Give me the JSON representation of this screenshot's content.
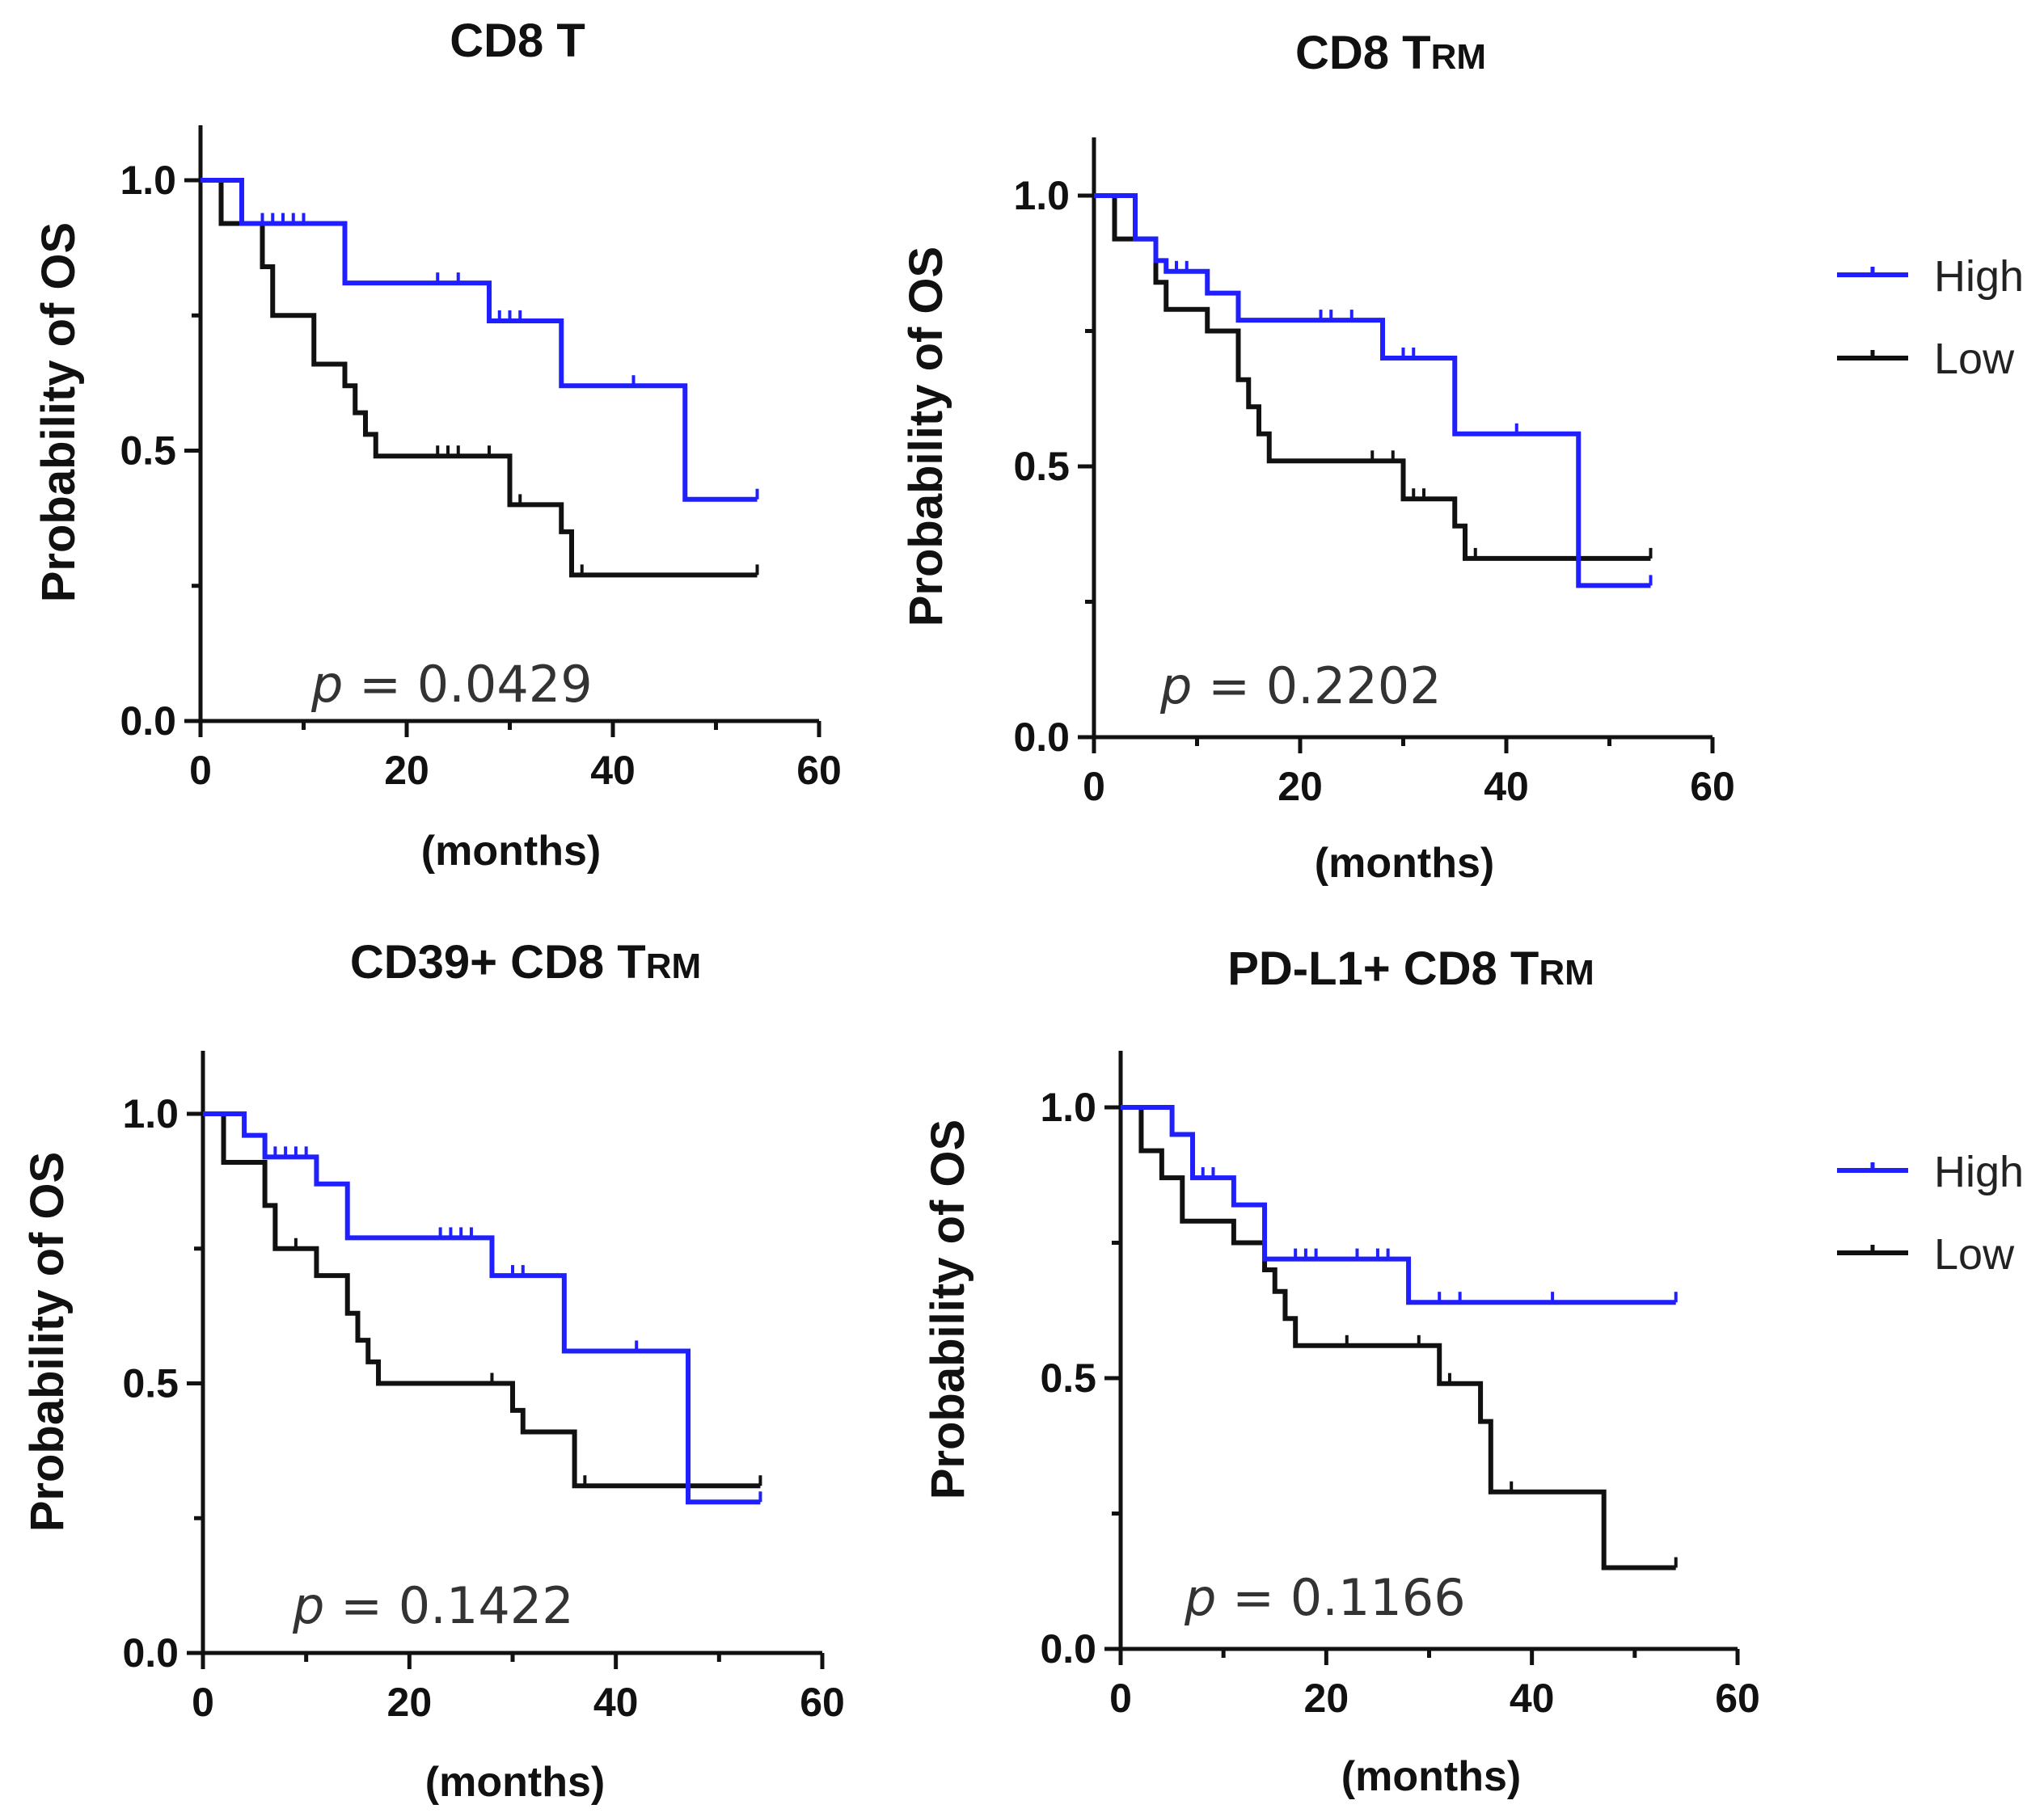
{
  "colors": {
    "high": "#1f1fff",
    "low": "#111111"
  },
  "legend": {
    "high_label": "High",
    "low_label": "Low"
  },
  "chart_data": [
    {
      "type": "line",
      "step": true,
      "title": "CD8 T",
      "title_subscript": "",
      "xlabel": "(months)",
      "ylabel": "Probability of OS",
      "xlim": [
        0,
        60
      ],
      "ylim": [
        0,
        1.1
      ],
      "xticks": [
        "0",
        "20",
        "40",
        "60"
      ],
      "yticks": [
        "0.0",
        "0.5",
        "1.0"
      ],
      "p_prefix": "p",
      "p_text": " = 0.0429",
      "show_legend": false,
      "series": [
        {
          "name": "High",
          "color": "#1f1fff",
          "x": [
            0,
            4,
            14,
            28,
            35,
            47,
            54
          ],
          "y": [
            1.0,
            0.92,
            0.81,
            0.74,
            0.62,
            0.41,
            0.41
          ],
          "censor_x": [
            6,
            7,
            8,
            9,
            10,
            23,
            25,
            29,
            30,
            31,
            42,
            54
          ],
          "censor_y": [
            0.92,
            0.92,
            0.92,
            0.92,
            0.92,
            0.81,
            0.81,
            0.74,
            0.74,
            0.74,
            0.62,
            0.41
          ]
        },
        {
          "name": "Low",
          "color": "#111111",
          "x": [
            0,
            2,
            6,
            7,
            11,
            14,
            15,
            16,
            17,
            30,
            35,
            36,
            54
          ],
          "y": [
            1.0,
            0.92,
            0.84,
            0.75,
            0.66,
            0.62,
            0.57,
            0.53,
            0.49,
            0.4,
            0.35,
            0.27,
            0.27
          ],
          "censor_x": [
            23,
            24,
            25,
            28,
            31,
            37,
            54
          ],
          "censor_y": [
            0.49,
            0.49,
            0.49,
            0.49,
            0.4,
            0.27,
            0.27
          ]
        }
      ]
    },
    {
      "type": "line",
      "step": true,
      "title": "CD8 T",
      "title_subscript": "RM",
      "xlabel": "(months)",
      "ylabel": "Probability of OS",
      "xlim": [
        0,
        60
      ],
      "ylim": [
        0,
        1.1
      ],
      "xticks": [
        "0",
        "20",
        "40",
        "60"
      ],
      "yticks": [
        "0.0",
        "0.5",
        "1.0"
      ],
      "p_prefix": "p",
      "p_text": " = 0.2202",
      "show_legend": true,
      "series": [
        {
          "name": "High",
          "color": "#1f1fff",
          "x": [
            0,
            4,
            6,
            7,
            11,
            14,
            28,
            35,
            47,
            54
          ],
          "y": [
            1.0,
            0.92,
            0.88,
            0.86,
            0.82,
            0.77,
            0.7,
            0.56,
            0.28,
            0.28
          ],
          "censor_x": [
            8,
            9,
            22,
            23,
            25,
            30,
            31,
            41,
            54
          ],
          "censor_y": [
            0.86,
            0.86,
            0.77,
            0.77,
            0.77,
            0.7,
            0.7,
            0.56,
            0.28
          ]
        },
        {
          "name": "Low",
          "color": "#111111",
          "x": [
            0,
            2,
            6,
            7,
            11,
            14,
            15,
            16,
            17,
            30,
            35,
            36,
            54
          ],
          "y": [
            1.0,
            0.92,
            0.84,
            0.79,
            0.75,
            0.66,
            0.61,
            0.56,
            0.51,
            0.44,
            0.39,
            0.33,
            0.33
          ],
          "censor_x": [
            27,
            29,
            31,
            32,
            37,
            54
          ],
          "censor_y": [
            0.51,
            0.51,
            0.44,
            0.44,
            0.33,
            0.33
          ]
        }
      ]
    },
    {
      "type": "line",
      "step": true,
      "title": "CD39+ CD8 T",
      "title_subscript": "RM",
      "xlabel": "(months)",
      "ylabel": "Probability of OS",
      "xlim": [
        0,
        60
      ],
      "ylim": [
        0,
        1.1
      ],
      "xticks": [
        "0",
        "20",
        "40",
        "60"
      ],
      "yticks": [
        "0.0",
        "0.5",
        "1.0"
      ],
      "p_prefix": "p",
      "p_text": " = 0.1422",
      "show_legend": false,
      "series": [
        {
          "name": "High",
          "color": "#1f1fff",
          "x": [
            0,
            4,
            6,
            11,
            14,
            28,
            35,
            47,
            54
          ],
          "y": [
            1.0,
            0.96,
            0.92,
            0.87,
            0.77,
            0.7,
            0.56,
            0.28,
            0.28
          ],
          "censor_x": [
            7,
            8,
            9,
            10,
            23,
            24,
            25,
            26,
            30,
            31,
            42,
            54
          ],
          "censor_y": [
            0.92,
            0.92,
            0.92,
            0.92,
            0.77,
            0.77,
            0.77,
            0.77,
            0.7,
            0.7,
            0.56,
            0.28
          ]
        },
        {
          "name": "Low",
          "color": "#111111",
          "x": [
            0,
            2,
            6,
            7,
            11,
            14,
            15,
            16,
            17,
            30,
            31,
            36,
            54
          ],
          "y": [
            1.0,
            0.91,
            0.83,
            0.75,
            0.7,
            0.63,
            0.58,
            0.54,
            0.5,
            0.45,
            0.41,
            0.31,
            0.31
          ],
          "censor_x": [
            9,
            28,
            37,
            54
          ],
          "censor_y": [
            0.75,
            0.5,
            0.31,
            0.31
          ]
        }
      ]
    },
    {
      "type": "line",
      "step": true,
      "title": "PD-L1+ CD8 T",
      "title_subscript": "RM",
      "xlabel": "(months)",
      "ylabel": "Probability of OS",
      "xlim": [
        0,
        60
      ],
      "ylim": [
        0,
        1.1
      ],
      "xticks": [
        "0",
        "20",
        "40",
        "60"
      ],
      "yticks": [
        "0.0",
        "0.5",
        "1.0"
      ],
      "p_prefix": "p",
      "p_text": " = 0.1166",
      "show_legend": true,
      "series": [
        {
          "name": "High",
          "color": "#1f1fff",
          "x": [
            0,
            5,
            7,
            11,
            14,
            28,
            54
          ],
          "y": [
            1.0,
            0.95,
            0.87,
            0.82,
            0.72,
            0.64,
            0.64
          ],
          "censor_x": [
            8,
            9,
            17,
            18,
            19,
            23,
            25,
            26,
            31,
            33,
            42,
            54
          ],
          "censor_y": [
            0.87,
            0.87,
            0.72,
            0.72,
            0.72,
            0.72,
            0.72,
            0.72,
            0.64,
            0.64,
            0.64,
            0.64
          ]
        },
        {
          "name": "Low",
          "color": "#111111",
          "x": [
            0,
            2,
            4,
            6,
            11,
            14,
            15,
            16,
            17,
            31,
            35,
            36,
            47,
            54
          ],
          "y": [
            1.0,
            0.92,
            0.87,
            0.79,
            0.75,
            0.7,
            0.66,
            0.61,
            0.56,
            0.49,
            0.42,
            0.29,
            0.15,
            0.15
          ],
          "censor_x": [
            22,
            29,
            32,
            38,
            54
          ],
          "censor_y": [
            0.56,
            0.56,
            0.49,
            0.29,
            0.15
          ]
        }
      ]
    }
  ]
}
